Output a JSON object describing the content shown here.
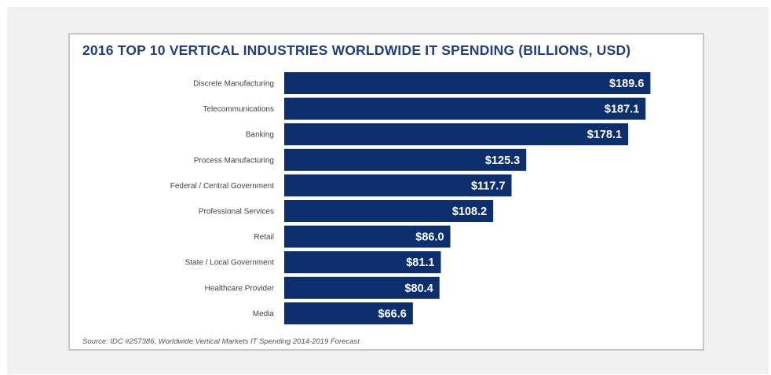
{
  "chart_data": {
    "type": "bar",
    "orientation": "horizontal",
    "title": "2016 TOP 10 VERTICAL INDUSTRIES WORLDWIDE IT SPENDING (BILLIONS, USD)",
    "categories": [
      "Discrete Manufacturing",
      "Telecommunications",
      "Banking",
      "Process Manufacturing",
      "Federal / Central Government",
      "Professional Services",
      "Retail",
      "State / Local Government",
      "Healthcare Provider",
      "Media"
    ],
    "values": [
      189.6,
      187.1,
      178.1,
      125.3,
      117.7,
      108.2,
      86.0,
      81.1,
      80.4,
      66.6
    ],
    "value_labels": [
      "$189.6",
      "$187.1",
      "$178.1",
      "$125.3",
      "$117.7",
      "$108.2",
      "$86.0",
      "$81.1",
      "$80.4",
      "$66.6"
    ],
    "bar_color": "#0d2f6e",
    "title_color": "#203e82",
    "source": "Source: IDC #257386, Worldwide Vertical Markets IT Spending 2014-2019 Forecast",
    "xlabel": "",
    "ylabel": "",
    "grid": false,
    "legend": "none"
  }
}
